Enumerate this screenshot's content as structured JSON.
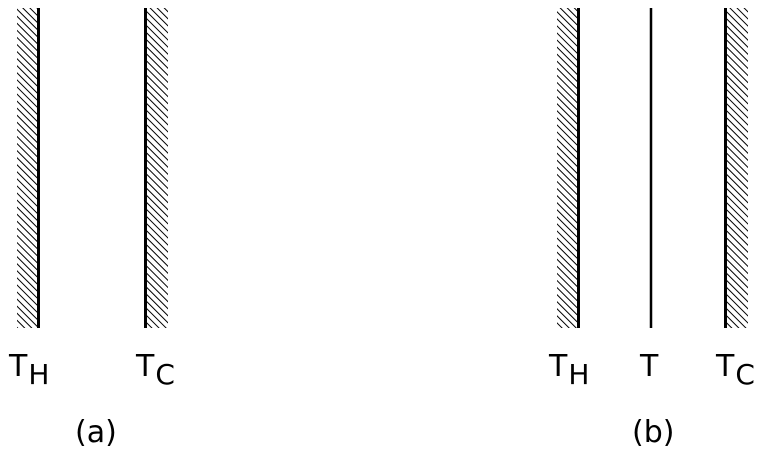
{
  "panels": [
    {
      "caption": "(a)",
      "items": [
        {
          "kind": "hatched-wall",
          "symbol": "T",
          "subscript": "H"
        },
        {
          "kind": "hatched-wall",
          "symbol": "T",
          "subscript": "C"
        }
      ]
    },
    {
      "caption": "(b)",
      "items": [
        {
          "kind": "hatched-wall",
          "symbol": "T",
          "subscript": "H"
        },
        {
          "kind": "plain-line",
          "symbol": "T",
          "subscript": ""
        },
        {
          "kind": "hatched-wall",
          "symbol": "T",
          "subscript": "C"
        }
      ]
    }
  ],
  "colors": {
    "ink": "#000000",
    "background": "#ffffff"
  }
}
